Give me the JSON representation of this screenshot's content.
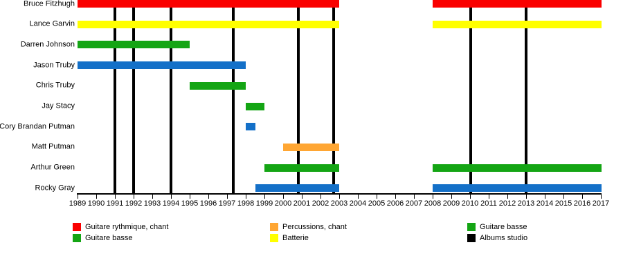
{
  "chart_data": {
    "type": "timeline",
    "title": "",
    "xlabel": "",
    "ylabel": "",
    "x_axis": {
      "start": 1989,
      "end": 2017,
      "ticks": [
        1989,
        1990,
        1991,
        1992,
        1993,
        1994,
        1995,
        1996,
        1997,
        1998,
        1999,
        2000,
        2001,
        2002,
        2003,
        2004,
        2005,
        2006,
        2007,
        2008,
        2009,
        2010,
        2011,
        2012,
        2013,
        2014,
        2015,
        2016,
        2017
      ]
    },
    "members": [
      {
        "name": "Bruce Fitzhugh",
        "color": "red",
        "periods": [
          [
            1989,
            2003
          ],
          [
            2008,
            2017.05
          ]
        ]
      },
      {
        "name": "Lance Garvin",
        "color": "yellow",
        "periods": [
          [
            1989,
            2003
          ],
          [
            2008,
            2017.05
          ]
        ]
      },
      {
        "name": "Darren Johnson",
        "color": "green",
        "periods": [
          [
            1989,
            1995
          ]
        ]
      },
      {
        "name": "Jason Truby",
        "color": "blue",
        "periods": [
          [
            1989,
            1998
          ]
        ]
      },
      {
        "name": "Chris Truby",
        "color": "green",
        "periods": [
          [
            1995,
            1998
          ]
        ]
      },
      {
        "name": "Jay Stacy",
        "color": "green",
        "periods": [
          [
            1998,
            1999
          ]
        ]
      },
      {
        "name": "Cory Brandan Putman",
        "color": "blue",
        "periods": [
          [
            1998,
            1998.5
          ]
        ]
      },
      {
        "name": "Matt Putman",
        "color": "orange",
        "periods": [
          [
            2000,
            2003
          ]
        ]
      },
      {
        "name": "Arthur Green",
        "color": "green",
        "periods": [
          [
            1999,
            2003
          ],
          [
            2008,
            2017.05
          ]
        ]
      },
      {
        "name": "Rocky Gray",
        "color": "blue",
        "periods": [
          [
            1998.5,
            2003
          ],
          [
            2008,
            2017.05
          ]
        ]
      }
    ],
    "album_lines": [
      1991,
      1992,
      1994,
      1997.35,
      2000.8,
      2002.7,
      2010.05,
      2013.0
    ],
    "legend": [
      {
        "color": "red",
        "label": "Guitare rythmique, chant"
      },
      {
        "color": "green",
        "label": "Guitare basse"
      },
      {
        "color": "orange",
        "label": "Percussions, chant"
      },
      {
        "color": "yellow",
        "label": "Batterie"
      },
      {
        "color": "green",
        "label": "Guitare basse"
      },
      {
        "color": "black",
        "label": "Albums studio"
      }
    ],
    "colors": {
      "red": "#FA0000",
      "yellow": "#FFFF00",
      "green": "#14A514",
      "blue": "#1470C8",
      "orange": "#FFA633",
      "black": "#000000"
    },
    "layout_hints": {
      "grid": "off",
      "legend_position": "bottom, three columns of two rows",
      "album_lines_layer": "behind bars"
    }
  }
}
